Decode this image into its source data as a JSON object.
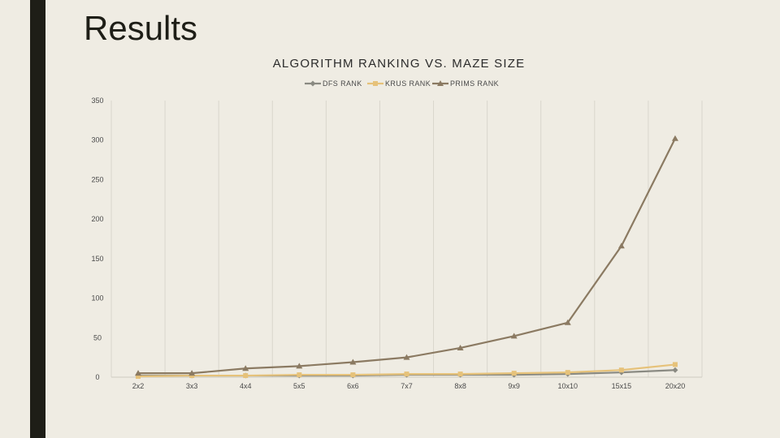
{
  "slide": {
    "title": "Results"
  },
  "colors": {
    "dfs": "#8a8a82",
    "krus": "#e6c27a",
    "prims": "#8b7a62",
    "grid": "#d9d6cc",
    "axis": "#cfcbc0"
  },
  "chart_data": {
    "type": "line",
    "title": "ALGORITHM RANKING VS. MAZE SIZE",
    "xlabel": "",
    "ylabel": "",
    "categories": [
      "2x2",
      "3x3",
      "4x4",
      "5x5",
      "6x6",
      "7x7",
      "8x8",
      "9x9",
      "10x10",
      "15x15",
      "20x20"
    ],
    "ylim": [
      0,
      350
    ],
    "yticks": [
      0,
      50,
      100,
      150,
      200,
      250,
      300,
      350
    ],
    "grid": {
      "vertical": true,
      "horizontal": false
    },
    "legend_position": "top",
    "series": [
      {
        "name": "DFS RANK",
        "marker": "diamond",
        "color": "#8a8a82",
        "values": [
          2,
          2,
          2,
          2,
          2,
          3,
          3,
          3,
          4,
          6,
          9
        ]
      },
      {
        "name": "KRUS RANK",
        "marker": "square",
        "color": "#e6c27a",
        "values": [
          1,
          2,
          2,
          3,
          3,
          4,
          4,
          5,
          6,
          9,
          16
        ]
      },
      {
        "name": "PRIMS RANK",
        "marker": "triangle",
        "color": "#8b7a62",
        "values": [
          5,
          5,
          11,
          14,
          19,
          25,
          37,
          52,
          69,
          166,
          302
        ]
      }
    ]
  }
}
